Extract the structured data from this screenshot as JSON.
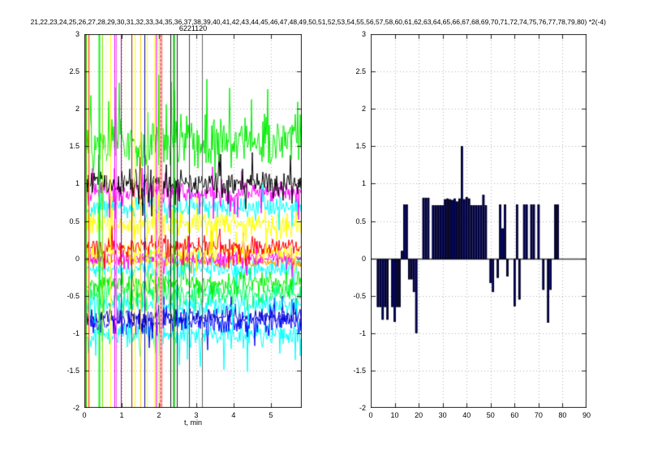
{
  "figure_title": "21,22,23,24,25,26,27,28,29,30,31,32,33,34,35,36,37,38,39,40,41,42,43,44,45,46,47,48,49,50,51,52,53,54,55,56,57,58,60,61,62,63,64,65,66,67,68,69,70,71,72,74,75,76,77,78,79,80) *2(-4)",
  "chart_data": [
    {
      "type": "line",
      "title": "6221120",
      "xlabel": "t, min",
      "xlim": [
        0,
        5.83
      ],
      "ylim": [
        -2,
        3
      ],
      "xticks": [
        0,
        1,
        2,
        3,
        4,
        5
      ],
      "yticks": [
        3,
        2.5,
        2,
        1.5,
        1,
        0.5,
        0,
        -0.5,
        -1,
        -1.5,
        -2
      ],
      "grid": "dotted",
      "description": "Dense multi-channel noise traces clustered in horizontal bands; full-height colored event lines in first ~2.6 min",
      "noise_series": [
        {
          "name": "cyan-low",
          "color": "#00ffff",
          "center": -1.02,
          "amplitude": 0.18,
          "spike": 0.38,
          "spike_dir": -1
        },
        {
          "name": "blue",
          "color": "#0000ff",
          "center": -0.85,
          "amplitude": 0.16,
          "spike": 0.25,
          "spike_dir": 0
        },
        {
          "name": "navy",
          "color": "#0000cc",
          "center": -0.78,
          "amplitude": 0.12,
          "spike": 0.2,
          "spike_dir": 0
        },
        {
          "name": "cyan-mid",
          "color": "#00ffff",
          "center": -0.62,
          "amplitude": 0.15,
          "spike": 0.2,
          "spike_dir": 0
        },
        {
          "name": "springgreen",
          "color": "#00ff66",
          "center": -0.48,
          "amplitude": 0.16,
          "spike": 0.2,
          "spike_dir": 0
        },
        {
          "name": "green-neg",
          "color": "#00ee00",
          "center": -0.33,
          "amplitude": 0.16,
          "spike": 0.25,
          "spike_dir": 0
        },
        {
          "name": "cyan-zero",
          "color": "#00ffff",
          "center": -0.13,
          "amplitude": 0.13,
          "spike": 0.2,
          "spike_dir": 0
        },
        {
          "name": "orange",
          "color": "#ff9900",
          "center": -0.04,
          "amplitude": 0.09,
          "spike": 0.15,
          "spike_dir": 0
        },
        {
          "name": "magenta-zero",
          "color": "#ff00ff",
          "center": 0.0,
          "amplitude": 0.12,
          "spike": 0.2,
          "spike_dir": 0
        },
        {
          "name": "yellow-low",
          "color": "#ffff00",
          "center": 0.07,
          "amplitude": 0.12,
          "spike": 0.2,
          "spike_dir": 0
        },
        {
          "name": "red",
          "color": "#ff0000",
          "center": 0.16,
          "amplitude": 0.13,
          "spike": 0.2,
          "spike_dir": 0
        },
        {
          "name": "yellow-band",
          "color": "#ffff00",
          "center": 0.45,
          "amplitude": 0.2,
          "spike": 0.25,
          "spike_dir": 0
        },
        {
          "name": "cyan-high",
          "color": "#00ffff",
          "center": 0.68,
          "amplitude": 0.16,
          "spike": 0.2,
          "spike_dir": 0
        },
        {
          "name": "magenta-high",
          "color": "#ff00ff",
          "center": 0.88,
          "amplitude": 0.16,
          "spike": 0.25,
          "spike_dir": 0
        },
        {
          "name": "black-band",
          "color": "#000000",
          "center": 1.0,
          "amplitude": 0.18,
          "spike": 0.3,
          "spike_dir": 0
        },
        {
          "name": "green-top",
          "color": "#00ee00",
          "center": 1.55,
          "amplitude": 0.4,
          "spike": 0.6,
          "spike_dir": 1
        }
      ],
      "event_vlines": [
        {
          "t": 0.02,
          "color": "#bb8800",
          "width": 1
        },
        {
          "t": 0.05,
          "color": "#22cc00",
          "width": 1
        },
        {
          "t": 0.1,
          "color": "#ff3300",
          "width": 1
        },
        {
          "t": 0.13,
          "color": "#ffee88",
          "width": 1
        },
        {
          "t": 0.4,
          "color": "#00ff00",
          "width": 2
        },
        {
          "t": 0.47,
          "color": "#88dd00",
          "width": 1
        },
        {
          "t": 0.57,
          "color": "#ffffaa",
          "width": 1
        },
        {
          "t": 0.69,
          "color": "#ffff00",
          "width": 1
        },
        {
          "t": 0.8,
          "color": "#ee00ee",
          "width": 1
        },
        {
          "t": 0.84,
          "color": "#ff55ff",
          "width": 1
        },
        {
          "t": 0.97,
          "color": "#990099",
          "width": 1
        },
        {
          "t": 1.09,
          "color": "#ffffbb",
          "width": 1
        },
        {
          "t": 1.27,
          "color": "#992200",
          "width": 1
        },
        {
          "t": 1.34,
          "color": "#ffff00",
          "width": 1
        },
        {
          "t": 1.5,
          "color": "#ffcc00",
          "width": 1
        },
        {
          "t": 1.6,
          "color": "#000099",
          "width": 1
        },
        {
          "t": 1.68,
          "color": "#ffff00",
          "width": 1
        },
        {
          "t": 1.87,
          "color": "#ffff44",
          "width": 1
        },
        {
          "t": 1.92,
          "color": "#ff00ff",
          "width": 1
        },
        {
          "t": 1.96,
          "color": "#aaee00",
          "width": 1
        },
        {
          "t": 2.04,
          "color": "#ffb3b3",
          "width": 4
        },
        {
          "t": 2.04,
          "color": "#ee3333",
          "width": 1,
          "dashed": true
        },
        {
          "t": 2.3,
          "color": "#111111",
          "width": 1
        },
        {
          "t": 2.39,
          "color": "#00bb00",
          "width": 2
        },
        {
          "t": 2.47,
          "color": "#222222",
          "width": 1
        },
        {
          "t": 2.8,
          "color": "#444444",
          "width": 1
        },
        {
          "t": 3.15,
          "color": "#666666",
          "width": 1
        }
      ]
    },
    {
      "type": "bar",
      "title": "",
      "xlabel": "",
      "xlim": [
        0,
        90
      ],
      "ylim": [
        -2,
        3
      ],
      "xticks": [
        0,
        10,
        20,
        30,
        40,
        50,
        60,
        70,
        80,
        90
      ],
      "yticks": [
        3,
        2.5,
        2,
        1.5,
        1,
        0.5,
        0,
        -0.5,
        -1,
        -1.5,
        -2
      ],
      "grid": "dotted",
      "bar_color": "#000080",
      "bar_edge": "#000000",
      "bars": [
        [
          3,
          -0.65
        ],
        [
          4,
          -0.65
        ],
        [
          5,
          -0.82
        ],
        [
          6,
          -0.65
        ],
        [
          7,
          -0.82
        ],
        [
          9,
          -0.65
        ],
        [
          10,
          -0.85
        ],
        [
          11,
          -0.65
        ],
        [
          12,
          -0.65
        ],
        [
          13,
          0.1
        ],
        [
          14,
          0.72
        ],
        [
          15,
          0.72
        ],
        [
          16,
          -0.28
        ],
        [
          17,
          -0.28
        ],
        [
          18,
          -0.45
        ],
        [
          19,
          -1.0
        ],
        [
          22,
          0.81
        ],
        [
          23,
          0.81
        ],
        [
          24,
          0.81
        ],
        [
          26,
          0.71
        ],
        [
          27,
          0.71
        ],
        [
          28,
          0.71
        ],
        [
          29,
          0.71
        ],
        [
          30,
          0.71
        ],
        [
          31,
          0.79
        ],
        [
          32,
          0.8
        ],
        [
          33,
          0.79
        ],
        [
          34,
          0.78
        ],
        [
          35,
          0.8
        ],
        [
          36,
          0.76
        ],
        [
          37,
          0.8
        ],
        [
          38,
          1.5
        ],
        [
          39,
          0.79
        ],
        [
          40,
          0.82
        ],
        [
          41,
          0.8
        ],
        [
          42,
          0.71
        ],
        [
          43,
          0.71
        ],
        [
          44,
          0.71
        ],
        [
          45,
          0.71
        ],
        [
          46,
          0.71
        ],
        [
          47,
          0.85
        ],
        [
          48,
          0.71
        ],
        [
          50,
          -0.33
        ],
        [
          51,
          -0.45
        ],
        [
          53,
          -0.26
        ],
        [
          54,
          0.72
        ],
        [
          55,
          0.4
        ],
        [
          56,
          0.72
        ],
        [
          57,
          -0.24
        ],
        [
          60,
          -0.64
        ],
        [
          61,
          0.72
        ],
        [
          62,
          -0.55
        ],
        [
          64,
          0.72
        ],
        [
          65,
          0.72
        ],
        [
          67,
          0.72
        ],
        [
          68,
          0.72
        ],
        [
          70,
          0.72
        ],
        [
          72,
          -0.42
        ],
        [
          74,
          -0.86
        ],
        [
          75,
          -0.42
        ],
        [
          77,
          0.72
        ],
        [
          78,
          0.72
        ]
      ]
    }
  ]
}
